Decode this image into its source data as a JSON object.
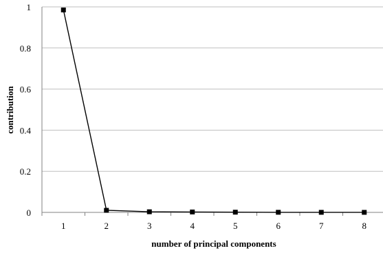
{
  "chart_data": {
    "type": "line",
    "title": "",
    "xlabel": "number of principal components",
    "ylabel": "contribution",
    "categories": [
      "1",
      "2",
      "3",
      "4",
      "5",
      "6",
      "7",
      "8"
    ],
    "series": [
      {
        "values": [
          0.985,
          0.01,
          0.003,
          0.002,
          0.001,
          0.0005,
          0.0003,
          0.0002
        ]
      }
    ],
    "ylim": [
      0,
      1
    ],
    "yticks": [
      "0",
      "0.2",
      "0.4",
      "0.6",
      "0.8",
      "1"
    ],
    "grid": "horizontal",
    "marker": "square",
    "line_color": "#000000"
  }
}
